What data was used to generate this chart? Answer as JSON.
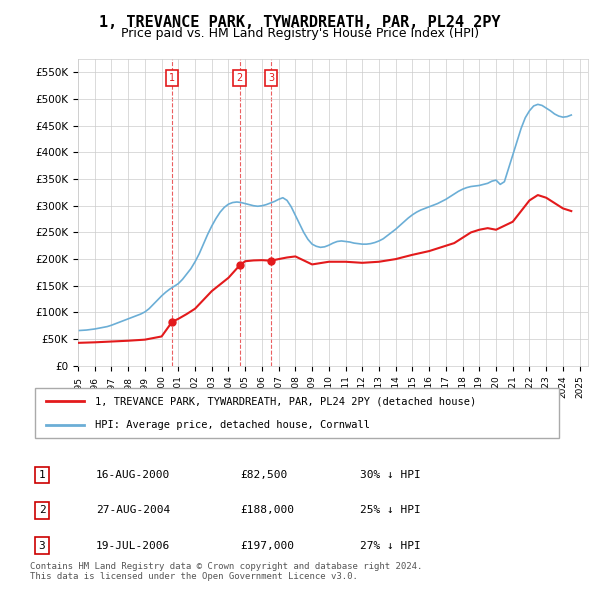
{
  "title": "1, TREVANCE PARK, TYWARDREATH, PAR, PL24 2PY",
  "subtitle": "Price paid vs. HM Land Registry's House Price Index (HPI)",
  "title_fontsize": 11,
  "subtitle_fontsize": 9,
  "ylim": [
    0,
    575000
  ],
  "yticks": [
    0,
    50000,
    100000,
    150000,
    200000,
    250000,
    300000,
    350000,
    400000,
    450000,
    500000,
    550000
  ],
  "ytick_labels": [
    "£0",
    "£50K",
    "£100K",
    "£150K",
    "£200K",
    "£250K",
    "£300K",
    "£350K",
    "£400K",
    "£450K",
    "£500K",
    "£550K"
  ],
  "xlim_start": 1995.0,
  "xlim_end": 2025.5,
  "hpi_color": "#6baed6",
  "property_color": "#e31a1c",
  "dashed_color": "#e31a1c",
  "background_color": "#ffffff",
  "grid_color": "#cccccc",
  "transactions": [
    {
      "num": 1,
      "year": 2000.63,
      "price": 82500,
      "label": "1",
      "date": "16-AUG-2000",
      "pct": "30%"
    },
    {
      "num": 2,
      "year": 2004.66,
      "price": 188000,
      "label": "2",
      "date": "27-AUG-2004",
      "pct": "25%"
    },
    {
      "num": 3,
      "year": 2006.55,
      "price": 197000,
      "label": "3",
      "date": "19-JUL-2006",
      "pct": "27%"
    }
  ],
  "legend_property": "1, TREVANCE PARK, TYWARDREATH, PAR, PL24 2PY (detached house)",
  "legend_hpi": "HPI: Average price, detached house, Cornwall",
  "table_rows": [
    [
      "1",
      "16-AUG-2000",
      "£82,500",
      "30% ↓ HPI"
    ],
    [
      "2",
      "27-AUG-2004",
      "£188,000",
      "25% ↓ HPI"
    ],
    [
      "3",
      "19-JUL-2006",
      "£197,000",
      "27% ↓ HPI"
    ]
  ],
  "footer": "Contains HM Land Registry data © Crown copyright and database right 2024.\nThis data is licensed under the Open Government Licence v3.0.",
  "hpi_data_x": [
    1995.0,
    1995.25,
    1995.5,
    1995.75,
    1996.0,
    1996.25,
    1996.5,
    1996.75,
    1997.0,
    1997.25,
    1997.5,
    1997.75,
    1998.0,
    1998.25,
    1998.5,
    1998.75,
    1999.0,
    1999.25,
    1999.5,
    1999.75,
    2000.0,
    2000.25,
    2000.5,
    2000.75,
    2001.0,
    2001.25,
    2001.5,
    2001.75,
    2002.0,
    2002.25,
    2002.5,
    2002.75,
    2003.0,
    2003.25,
    2003.5,
    2003.75,
    2004.0,
    2004.25,
    2004.5,
    2004.75,
    2005.0,
    2005.25,
    2005.5,
    2005.75,
    2006.0,
    2006.25,
    2006.5,
    2006.75,
    2007.0,
    2007.25,
    2007.5,
    2007.75,
    2008.0,
    2008.25,
    2008.5,
    2008.75,
    2009.0,
    2009.25,
    2009.5,
    2009.75,
    2010.0,
    2010.25,
    2010.5,
    2010.75,
    2011.0,
    2011.25,
    2011.5,
    2011.75,
    2012.0,
    2012.25,
    2012.5,
    2012.75,
    2013.0,
    2013.25,
    2013.5,
    2013.75,
    2014.0,
    2014.25,
    2014.5,
    2014.75,
    2015.0,
    2015.25,
    2015.5,
    2015.75,
    2016.0,
    2016.25,
    2016.5,
    2016.75,
    2017.0,
    2017.25,
    2017.5,
    2017.75,
    2018.0,
    2018.25,
    2018.5,
    2018.75,
    2019.0,
    2019.25,
    2019.5,
    2019.75,
    2020.0,
    2020.25,
    2020.5,
    2020.75,
    2021.0,
    2021.25,
    2021.5,
    2021.75,
    2022.0,
    2022.25,
    2022.5,
    2022.75,
    2023.0,
    2023.25,
    2023.5,
    2023.75,
    2024.0,
    2024.25,
    2024.5
  ],
  "hpi_data_y": [
    66000,
    66500,
    67000,
    68000,
    69000,
    70500,
    72000,
    73500,
    76000,
    79000,
    82000,
    85000,
    88000,
    91000,
    94000,
    97000,
    101000,
    107000,
    115000,
    123000,
    131000,
    138000,
    144000,
    149000,
    154000,
    162000,
    172000,
    182000,
    195000,
    210000,
    228000,
    246000,
    262000,
    276000,
    288000,
    297000,
    303000,
    306000,
    307000,
    306000,
    304000,
    302000,
    300000,
    299000,
    300000,
    302000,
    305000,
    308000,
    312000,
    315000,
    310000,
    298000,
    282000,
    266000,
    250000,
    237000,
    228000,
    224000,
    222000,
    223000,
    226000,
    230000,
    233000,
    234000,
    233000,
    232000,
    230000,
    229000,
    228000,
    228000,
    229000,
    231000,
    234000,
    238000,
    244000,
    250000,
    256000,
    263000,
    270000,
    277000,
    283000,
    288000,
    292000,
    295000,
    298000,
    301000,
    304000,
    308000,
    312000,
    317000,
    322000,
    327000,
    331000,
    334000,
    336000,
    337000,
    338000,
    340000,
    342000,
    346000,
    348000,
    340000,
    345000,
    370000,
    395000,
    420000,
    445000,
    465000,
    478000,
    487000,
    490000,
    488000,
    483000,
    478000,
    472000,
    468000,
    466000,
    467000,
    470000
  ],
  "prop_data_x": [
    1995.0,
    1996.0,
    1997.0,
    1998.0,
    1999.0,
    2000.0,
    2000.63,
    2001.0,
    2001.5,
    2002.0,
    2003.0,
    2004.0,
    2004.66,
    2005.0,
    2005.5,
    2006.0,
    2006.55,
    2007.0,
    2007.5,
    2008.0,
    2009.0,
    2010.0,
    2011.0,
    2012.0,
    2013.0,
    2014.0,
    2015.0,
    2016.0,
    2017.0,
    2017.5,
    2018.0,
    2018.5,
    2019.0,
    2019.5,
    2020.0,
    2021.0,
    2021.5,
    2022.0,
    2022.5,
    2023.0,
    2023.5,
    2024.0,
    2024.5
  ],
  "prop_data_y": [
    43000,
    44000,
    45500,
    47000,
    49000,
    55000,
    82500,
    88000,
    97000,
    107000,
    140000,
    165000,
    188000,
    196000,
    197500,
    198000,
    197000,
    200000,
    203000,
    205000,
    190000,
    195000,
    195000,
    193000,
    195000,
    200000,
    208000,
    215000,
    225000,
    230000,
    240000,
    250000,
    255000,
    258000,
    255000,
    270000,
    290000,
    310000,
    320000,
    315000,
    305000,
    295000,
    290000
  ]
}
